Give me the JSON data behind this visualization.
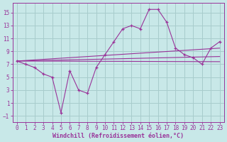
{
  "xlabel": "Windchill (Refroidissement éolien,°C)",
  "x_data": [
    0,
    1,
    2,
    3,
    4,
    5,
    6,
    7,
    8,
    9,
    10,
    11,
    12,
    13,
    14,
    15,
    16,
    17,
    18,
    19,
    20,
    21,
    22,
    23
  ],
  "main_line": [
    7.5,
    7.0,
    6.5,
    5.5,
    5.0,
    -0.5,
    6.0,
    3.0,
    2.5,
    6.5,
    8.5,
    10.5,
    12.5,
    13.0,
    12.5,
    15.5,
    15.5,
    13.5,
    9.5,
    8.5,
    8.0,
    7.0,
    9.5,
    10.5
  ],
  "reg1": [
    7.5,
    9.5
  ],
  "reg2": [
    7.5,
    8.2
  ],
  "reg3": [
    7.5,
    7.4
  ],
  "line_color": "#993399",
  "bg_color": "#c8e8e8",
  "grid_color": "#a8cccc",
  "xlim": [
    -0.5,
    23.5
  ],
  "ylim": [
    -2.0,
    16.5
  ],
  "yticks": [
    -1,
    1,
    3,
    5,
    7,
    9,
    11,
    13,
    15
  ],
  "xticks": [
    0,
    1,
    2,
    3,
    4,
    5,
    6,
    7,
    8,
    9,
    10,
    11,
    12,
    13,
    14,
    15,
    16,
    17,
    18,
    19,
    20,
    21,
    22,
    23
  ],
  "tick_fontsize": 5.5,
  "xlabel_fontsize": 6.0
}
